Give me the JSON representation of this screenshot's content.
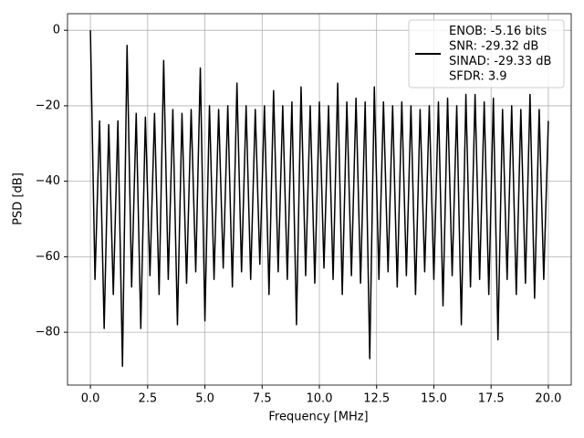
{
  "chart_data": {
    "type": "line",
    "xlabel": "Frequency [MHz]",
    "ylabel": "PSD [dB]",
    "x": [
      0.0,
      0.2,
      0.4,
      0.6,
      0.8,
      1.0,
      1.2,
      1.4,
      1.6,
      1.8,
      2.0,
      2.2,
      2.4,
      2.6,
      2.8,
      3.0,
      3.2,
      3.4,
      3.6,
      3.8,
      4.0,
      4.2,
      4.4,
      4.6,
      4.8,
      5.0,
      5.2,
      5.4,
      5.6,
      5.8,
      6.0,
      6.2,
      6.4,
      6.6,
      6.8,
      7.0,
      7.2,
      7.4,
      7.6,
      7.8,
      8.0,
      8.2,
      8.4,
      8.6,
      8.8,
      9.0,
      9.2,
      9.4,
      9.6,
      9.8,
      10.0,
      10.2,
      10.4,
      10.6,
      10.8,
      11.0,
      11.2,
      11.4,
      11.6,
      11.8,
      12.0,
      12.2,
      12.4,
      12.6,
      12.8,
      13.0,
      13.2,
      13.4,
      13.6,
      13.8,
      14.0,
      14.2,
      14.4,
      14.6,
      14.8,
      15.0,
      15.2,
      15.4,
      15.6,
      15.8,
      16.0,
      16.2,
      16.4,
      16.6,
      16.8,
      17.0,
      17.2,
      17.4,
      17.6,
      17.8,
      18.0,
      18.2,
      18.4,
      18.6,
      18.8,
      19.0,
      19.2,
      19.4,
      19.6,
      19.8,
      20.0
    ],
    "series": [
      {
        "name": [
          "ENOB: -5.16 bits",
          "SNR: -29.32 dB",
          "SINAD: -29.33 dB",
          "SFDR: 3.9"
        ],
        "color": "#000000",
        "values": [
          0,
          -66,
          -24,
          -79,
          -25,
          -70,
          -24,
          -89,
          -4,
          -68,
          -22,
          -79,
          -23,
          -65,
          -22,
          -70,
          -8,
          -66,
          -21,
          -78,
          -22,
          -67,
          -21,
          -64,
          -10,
          -77,
          -20,
          -66,
          -21,
          -63,
          -20,
          -68,
          -14,
          -64,
          -20,
          -66,
          -21,
          -62,
          -20,
          -70,
          -16,
          -64,
          -20,
          -66,
          -19,
          -78,
          -15,
          -65,
          -20,
          -67,
          -19,
          -63,
          -20,
          -66,
          -14,
          -70,
          -19,
          -65,
          -18,
          -67,
          -19,
          -87,
          -15,
          -66,
          -19,
          -64,
          -20,
          -68,
          -19,
          -65,
          -20,
          -70,
          -21,
          -64,
          -20,
          -66,
          -19,
          -73,
          -18,
          -65,
          -20,
          -78,
          -17,
          -68,
          -17,
          -66,
          -19,
          -70,
          -18,
          -82,
          -21,
          -66,
          -20,
          -70,
          -21,
          -67,
          -17,
          -71,
          -21,
          -66,
          -24
        ]
      }
    ],
    "xlim": [
      -1.0,
      21.0
    ],
    "ylim": [
      -94.0,
      4.4
    ],
    "xticks": [
      {
        "value": 0,
        "label": "0.0"
      },
      2.5,
      {
        "value": 5,
        "label": "5.0"
      },
      7.5,
      {
        "value": 10,
        "label": "10.0"
      },
      12.5,
      {
        "value": 15,
        "label": "15.0"
      },
      17.5,
      {
        "value": 20,
        "label": "20.0"
      }
    ],
    "yticks": [
      {
        "value": -80,
        "label": "−80"
      },
      {
        "value": -60,
        "label": "−60"
      },
      {
        "value": -40,
        "label": "−40"
      },
      {
        "value": -20,
        "label": "−20"
      },
      0
    ],
    "grid": true,
    "legend": "upper right"
  }
}
